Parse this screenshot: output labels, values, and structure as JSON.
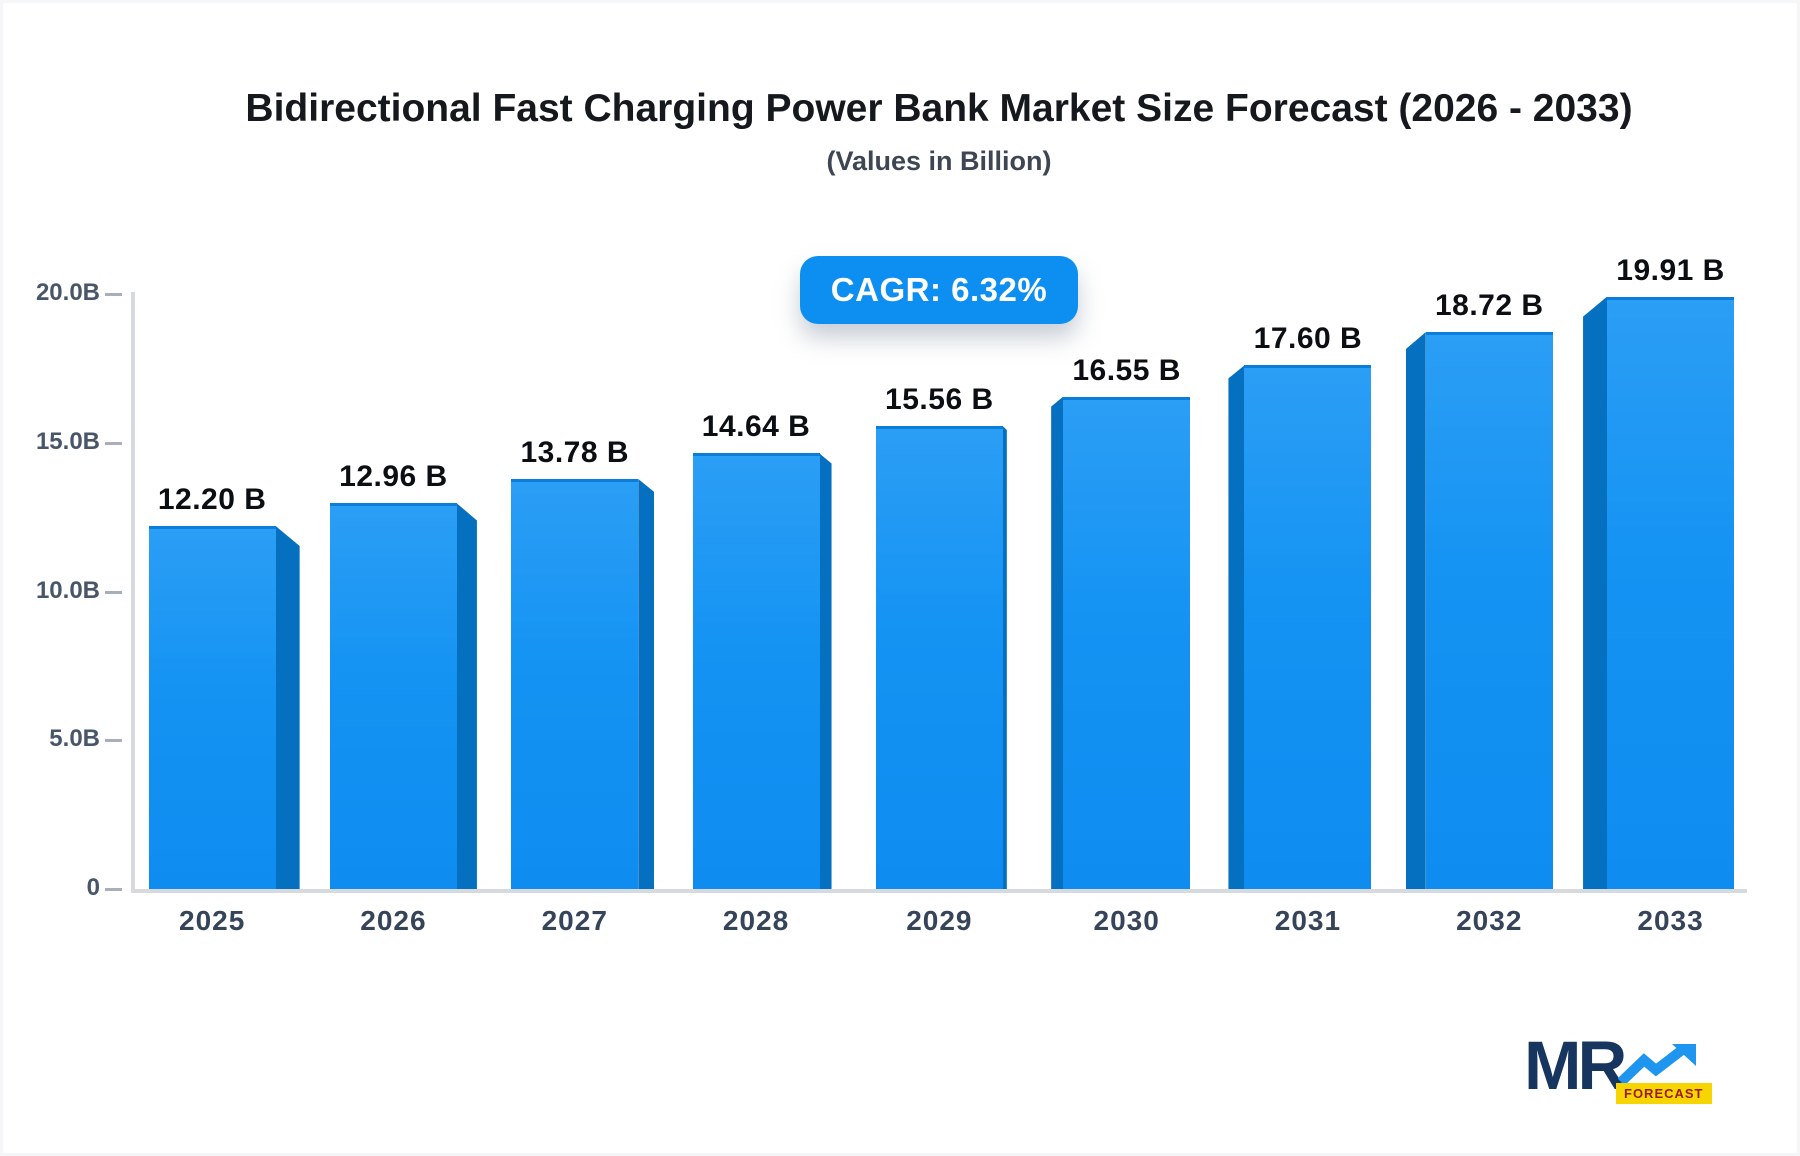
{
  "header": {
    "title": "Bidirectional Fast Charging Power Bank Market Size Forecast (2026 - 2033)",
    "subtitle": "(Values in Billion)"
  },
  "cagr": {
    "label": "CAGR: 6.32%"
  },
  "chart_data": {
    "type": "bar",
    "title": "Bidirectional Fast Charging Power Bank Market Size Forecast (2026 - 2033)",
    "subtitle": "(Values in Billion)",
    "categories": [
      "2025",
      "2026",
      "2027",
      "2028",
      "2029",
      "2030",
      "2031",
      "2032",
      "2033"
    ],
    "values": [
      12.2,
      12.96,
      13.78,
      14.64,
      15.56,
      16.55,
      17.6,
      18.72,
      19.91
    ],
    "bar_labels": [
      "12.20 B",
      "12.96 B",
      "13.78 B",
      "14.64 B",
      "15.56 B",
      "16.55 B",
      "17.60 B",
      "18.72 B",
      "19.91 B"
    ],
    "xlabel": "",
    "ylabel": "",
    "ylim": [
      0,
      20
    ],
    "yticks": [
      {
        "value": 0,
        "label": "0"
      },
      {
        "value": 5,
        "label": "5.0B"
      },
      {
        "value": 10,
        "label": "10.0B"
      },
      {
        "value": 15,
        "label": "15.0B"
      },
      {
        "value": 20,
        "label": "20.0B"
      }
    ],
    "grid": false,
    "legend": false,
    "annotations": [
      "CAGR: 6.32%"
    ],
    "bar_color": "#1b96f3",
    "bar_side_color": "#0670c0",
    "style": "3d-perspective-bars"
  },
  "logo": {
    "text": "MR",
    "tagline": "FORECAST"
  },
  "colors": {
    "badge_bg": "#0d8ff2",
    "badge_text": "#ffffff",
    "value_label": "#0b0f14",
    "axis_label": "#49566a",
    "axis_line": "#d6dade",
    "logo_navy": "#17365f",
    "logo_yellow": "#f7d500",
    "logo_tagline_text": "#991b1b",
    "logo_arrow_blue": "#1e95ef"
  }
}
